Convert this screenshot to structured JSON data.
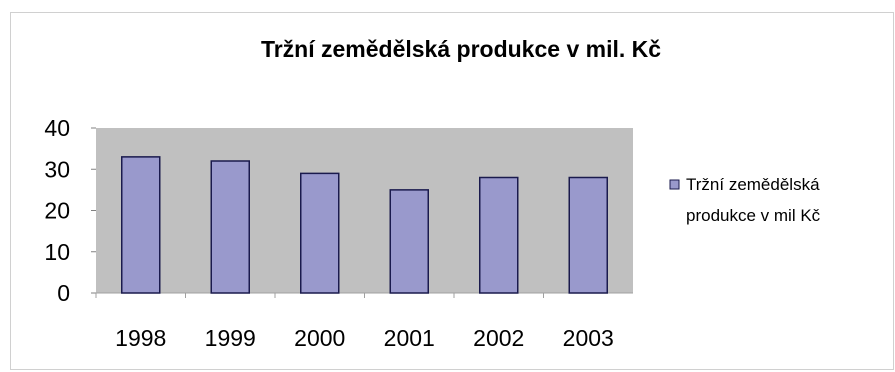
{
  "colors": {
    "plot_background": "#c0c0c0",
    "bar_fill": "#9999cc",
    "bar_stroke": "#1a1a4d",
    "legend_swatch": "#9999cc"
  },
  "chart_data": {
    "type": "bar",
    "title": "Tržní zemědělská produkce v mil. Kč",
    "xlabel": "",
    "ylabel": "",
    "categories": [
      "1998",
      "1999",
      "2000",
      "2001",
      "2002",
      "2003"
    ],
    "series": [
      {
        "name": "Tržní zemědělská produkce v mil Kč",
        "values": [
          33,
          32,
          29,
          25,
          28,
          28
        ]
      }
    ],
    "ylim": [
      0,
      40
    ],
    "yticks": [
      0,
      10,
      20,
      30,
      40
    ],
    "grid": false,
    "legend_position": "right",
    "legend_lines": [
      "Tržní zemědělská",
      "produkce v mil Kč"
    ]
  }
}
